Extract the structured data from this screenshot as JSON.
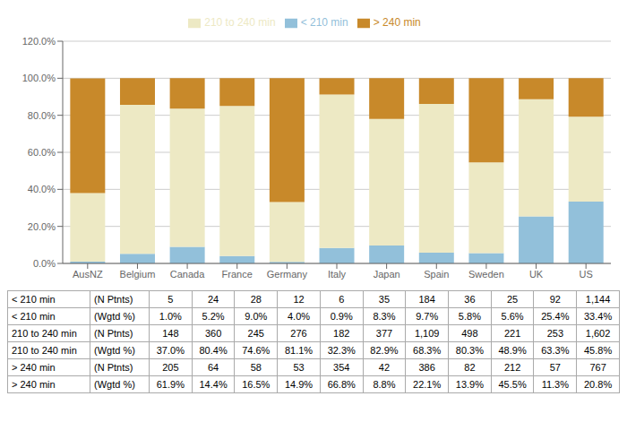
{
  "chart_data": {
    "type": "bar",
    "stacked": true,
    "grid": true,
    "categories": [
      "AusNZ",
      "Belgium",
      "Canada",
      "France",
      "Germany",
      "Italy",
      "Japan",
      "Spain",
      "Sweden",
      "UK",
      "US"
    ],
    "series": [
      {
        "name": "< 210 min",
        "color": "#92c0da",
        "values": [
          1.0,
          5.2,
          9.0,
          4.0,
          0.9,
          8.3,
          9.7,
          5.8,
          5.6,
          25.4,
          33.4
        ],
        "percent_labels": [
          "1.0%",
          "5.2%",
          "9.0%",
          "4.0%",
          "0.9%",
          "8.3%",
          "9.7%",
          "5.8%",
          "5.6%",
          "25.4%",
          "33.4%"
        ],
        "count_labels": [
          "5",
          "24",
          "28",
          "12",
          "6",
          "35",
          "184",
          "36",
          "25",
          "92",
          "1,144"
        ]
      },
      {
        "name": "210 to 240 min",
        "color": "#ede9c4",
        "values": [
          37.0,
          80.4,
          74.6,
          81.1,
          32.3,
          82.9,
          68.3,
          80.3,
          48.9,
          63.3,
          45.8
        ],
        "percent_labels": [
          "37.0%",
          "80.4%",
          "74.6%",
          "81.1%",
          "32.3%",
          "82.9%",
          "68.3%",
          "80.3%",
          "48.9%",
          "63.3%",
          "45.8%"
        ],
        "count_labels": [
          "148",
          "360",
          "245",
          "276",
          "182",
          "377",
          "1,109",
          "498",
          "221",
          "253",
          "1,602"
        ]
      },
      {
        "name": "> 240 min",
        "color": "#c8892a",
        "values": [
          61.9,
          14.4,
          16.5,
          14.9,
          66.8,
          8.8,
          22.1,
          13.9,
          45.5,
          11.3,
          20.8
        ],
        "percent_labels": [
          "61.9%",
          "14.4%",
          "16.5%",
          "14.9%",
          "66.8%",
          "8.8%",
          "22.1%",
          "13.9%",
          "45.5%",
          "11.3%",
          "20.8%"
        ],
        "count_labels": [
          "205",
          "64",
          "58",
          "53",
          "354",
          "42",
          "386",
          "82",
          "212",
          "57",
          "767"
        ]
      }
    ],
    "table_row_labels": [
      "(N Ptnts)",
      "(Wgtd %)"
    ],
    "ylim": [
      0,
      120
    ],
    "yticks": [
      {
        "value": 0,
        "label": "0.0%"
      },
      {
        "value": 20,
        "label": "20.0%"
      },
      {
        "value": 40,
        "label": "40.0%"
      },
      {
        "value": 60,
        "label": "60.0%"
      },
      {
        "value": 80,
        "label": "80.0%"
      },
      {
        "value": 100,
        "label": "100.0%"
      },
      {
        "value": 120,
        "label": "120.0%"
      }
    ]
  }
}
